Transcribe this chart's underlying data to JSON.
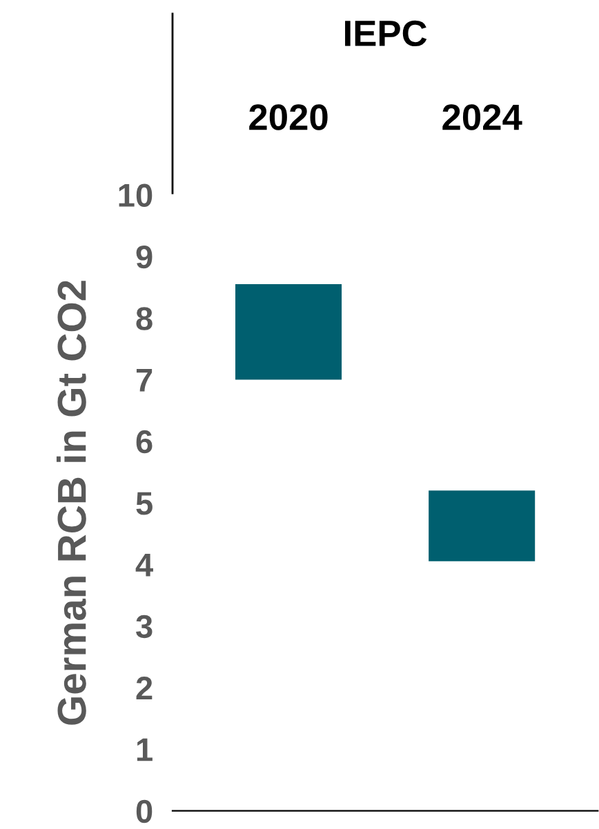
{
  "chart_data": {
    "type": "bar",
    "xlabel": "IEPC",
    "ylabel": "German RCB in Gt CO2",
    "categories": [
      "2020",
      "2024"
    ],
    "values": [
      1.55,
      1.15
    ],
    "base": [
      7,
      4.05
    ],
    "color": "#005f6f",
    "ylim": [
      0,
      10
    ],
    "yticks": [
      0,
      1,
      2,
      3,
      4,
      5,
      6,
      7,
      8,
      9,
      10
    ],
    "grid": false
  }
}
